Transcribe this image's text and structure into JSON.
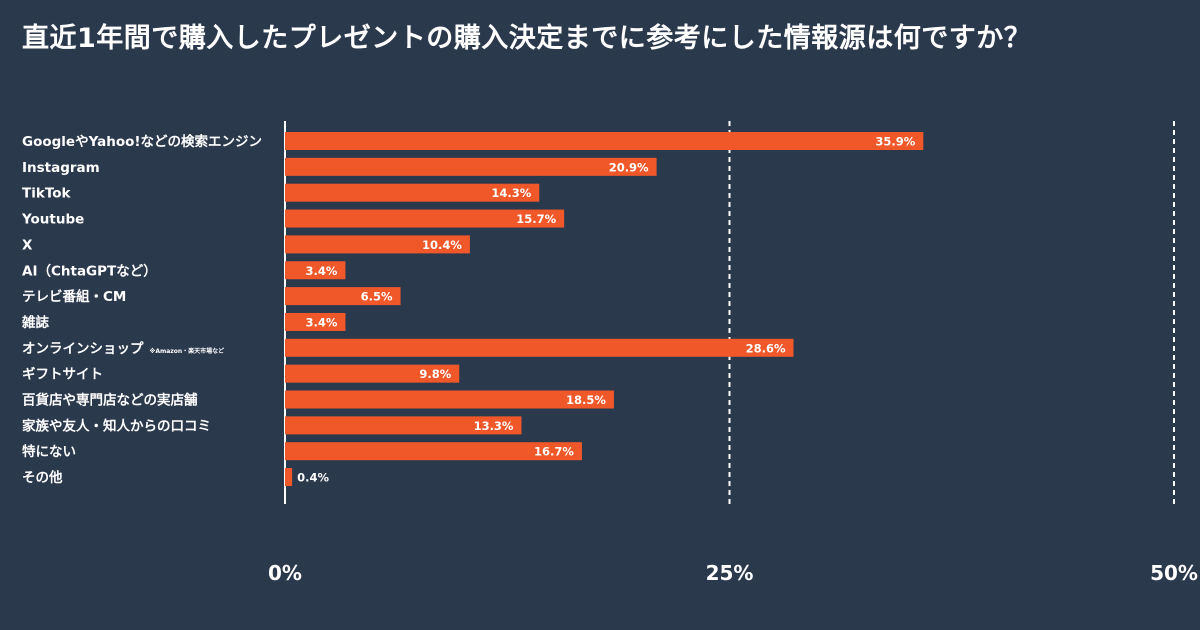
{
  "chart_data": {
    "type": "bar",
    "orientation": "horizontal",
    "title": "直近1年間で購入したプレゼントの購入決定までに参考にした情報源は何ですか？",
    "xlabel": "",
    "ylabel": "",
    "xlim": [
      0,
      50
    ],
    "categories": [
      "GoogleやYahoo!などの検索エンジン",
      "Instagram",
      "TikTok",
      "Youtube",
      "X",
      "AI（ChtaGPTなど）",
      "テレビ番組・CM",
      "雑誌",
      "オンラインショップ",
      "ギフトサイト",
      "百貨店や専門店などの実店舗",
      "家族や友人・知人からの口コミ",
      "特にない",
      "その他"
    ],
    "category_notes": [
      "",
      "",
      "",
      "",
      "",
      "",
      "",
      "",
      "※Amazon・楽天市場など",
      "",
      "",
      "",
      "",
      ""
    ],
    "values": [
      35.9,
      20.9,
      14.3,
      15.7,
      10.4,
      3.4,
      6.5,
      3.4,
      28.6,
      9.8,
      18.5,
      13.3,
      16.7,
      0.4
    ],
    "value_labels": [
      "35.9%",
      "20.9%",
      "14.3%",
      "15.7%",
      "10.4%",
      "3.4%",
      "6.5%",
      "3.4%",
      "28.6%",
      "9.8%",
      "18.5%",
      "13.3%",
      "16.7%",
      "0.4%"
    ],
    "ticks": [
      0,
      25,
      50
    ],
    "tick_labels": [
      "0%",
      "25%",
      "50%"
    ],
    "gridlines": "dashed at 25% and 50%",
    "colors": {
      "background": "#2b394d",
      "bar": "#f0582a",
      "text": "#ffffff",
      "axis": "#ffffff"
    }
  }
}
